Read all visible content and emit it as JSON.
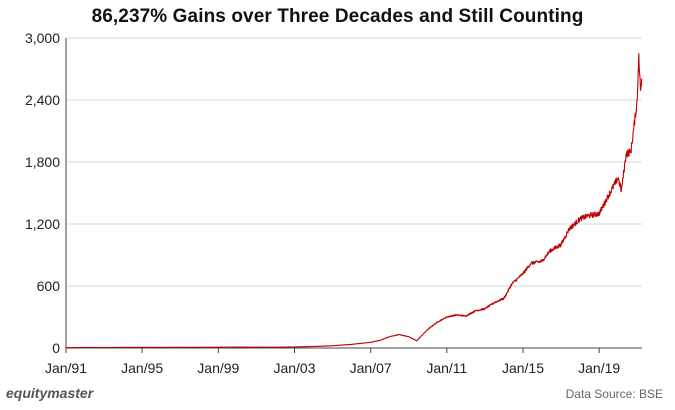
{
  "chart_data": {
    "type": "line",
    "title": "86,237% Gains over Three Decades and Still Counting",
    "xlabel": "",
    "ylabel": "",
    "ylim": [
      0,
      3000
    ],
    "y_ticks": [
      0,
      600,
      1200,
      1800,
      2400,
      3000
    ],
    "y_tick_labels": [
      "0",
      "600",
      "1,200",
      "1,800",
      "2,400",
      "3,000"
    ],
    "x_range": [
      "1991-01",
      "2021-04"
    ],
    "x_ticks": [
      "1991-01",
      "1995-01",
      "1999-01",
      "2003-01",
      "2007-01",
      "2011-01",
      "2015-01",
      "2019-01"
    ],
    "x_tick_labels": [
      "Jan/91",
      "Jan/95",
      "Jan/99",
      "Jan/03",
      "Jan/07",
      "Jan/11",
      "Jan/15",
      "Jan/19"
    ],
    "grid": "horizontal",
    "line_color": "#c00000",
    "series": [
      {
        "x": [
          "1991-01",
          "1992-01",
          "1993-01",
          "1994-01",
          "1995-01",
          "1996-01",
          "1997-01",
          "1998-01",
          "1999-01",
          "2000-01",
          "2001-01",
          "2002-01",
          "2003-01",
          "2004-01",
          "2005-01",
          "2006-01",
          "2007-01",
          "2007-07",
          "2008-01",
          "2008-07",
          "2009-01",
          "2009-06",
          "2010-01",
          "2010-07",
          "2011-01",
          "2011-07",
          "2012-01",
          "2012-07",
          "2013-01",
          "2013-07",
          "2014-01",
          "2014-06",
          "2015-01",
          "2015-06",
          "2016-01",
          "2016-06",
          "2017-01",
          "2017-06",
          "2018-01",
          "2018-06",
          "2019-01",
          "2019-06",
          "2020-01",
          "2020-03",
          "2020-06",
          "2020-09",
          "2021-01",
          "2021-02",
          "2021-03",
          "2021-04"
        ],
        "values": [
          3,
          5,
          4,
          6,
          6,
          6,
          7,
          7,
          8,
          9,
          8,
          8,
          10,
          15,
          22,
          35,
          55,
          75,
          110,
          130,
          110,
          70,
          180,
          250,
          300,
          320,
          310,
          360,
          380,
          440,
          480,
          620,
          720,
          820,
          840,
          940,
          1000,
          1150,
          1250,
          1280,
          1300,
          1450,
          1650,
          1520,
          1880,
          1900,
          2400,
          2850,
          2500,
          2600
        ]
      }
    ]
  },
  "footer": {
    "brand": "equitymaster",
    "source": "Data Source: BSE"
  }
}
